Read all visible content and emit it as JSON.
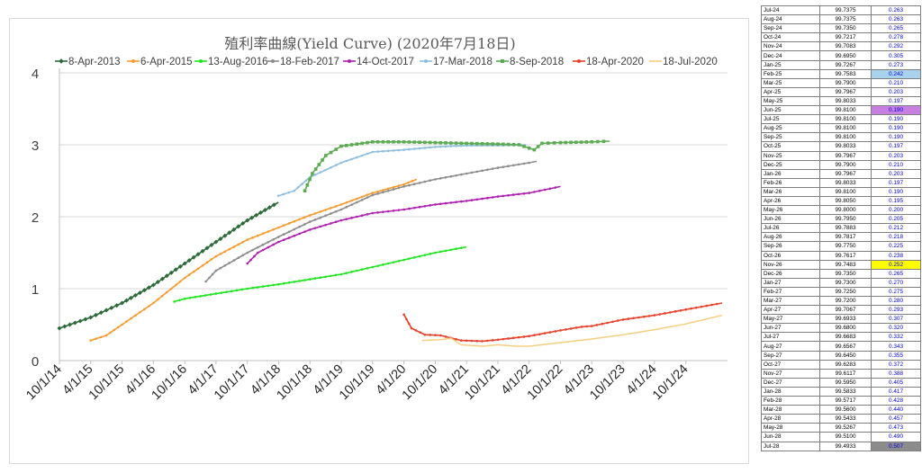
{
  "chart_data": {
    "type": "line",
    "title": "殖利率曲線(Yield Curve) (2020年7月18日)",
    "xlabel": "",
    "ylabel": "",
    "ylim": [
      0,
      4
    ],
    "yticks": [
      "0",
      "1",
      "2",
      "3",
      "4"
    ],
    "xticks": [
      "10/1/14",
      "4/1/15",
      "10/1/15",
      "4/1/16",
      "10/1/16",
      "4/1/17",
      "10/1/17",
      "4/1/18",
      "10/1/18",
      "4/1/19",
      "10/1/19",
      "4/1/20",
      "10/1/20",
      "4/1/21",
      "10/1/21",
      "4/1/22",
      "10/1/22",
      "4/1/23",
      "10/1/23",
      "4/1/24",
      "10/1/24"
    ],
    "grid": "horizontal",
    "legend": "top",
    "series": [
      {
        "name": "8-Apr-2013",
        "color": "#2e6b3b",
        "marker": "diamond",
        "points": [
          [
            "2014-10-01",
            0.45
          ],
          [
            "2015-04-01",
            0.6
          ],
          [
            "2015-10-01",
            0.8
          ],
          [
            "2016-04-01",
            1.05
          ],
          [
            "2016-10-01",
            1.35
          ],
          [
            "2017-04-01",
            1.65
          ],
          [
            "2017-10-01",
            1.95
          ],
          [
            "2018-03-31",
            2.2
          ]
        ]
      },
      {
        "name": "6-Apr-2015",
        "color": "#f79b2f",
        "marker": "dot",
        "points": [
          [
            "2015-04-01",
            0.28
          ],
          [
            "2015-07-01",
            0.35
          ],
          [
            "2015-10-01",
            0.5
          ],
          [
            "2016-04-01",
            0.8
          ],
          [
            "2016-10-01",
            1.15
          ],
          [
            "2017-04-01",
            1.45
          ],
          [
            "2017-10-01",
            1.68
          ],
          [
            "2018-04-01",
            1.85
          ],
          [
            "2018-10-01",
            2.02
          ],
          [
            "2019-04-01",
            2.17
          ],
          [
            "2019-10-01",
            2.33
          ],
          [
            "2020-04-01",
            2.45
          ],
          [
            "2020-06-15",
            2.52
          ]
        ]
      },
      {
        "name": "13-Aug-2016",
        "color": "#1ee61e",
        "marker": "dot",
        "points": [
          [
            "2016-08-01",
            0.82
          ],
          [
            "2016-10-01",
            0.86
          ],
          [
            "2017-04-01",
            0.93
          ],
          [
            "2017-10-01",
            1.0
          ],
          [
            "2018-04-01",
            1.06
          ],
          [
            "2018-10-01",
            1.13
          ],
          [
            "2019-04-01",
            1.2
          ],
          [
            "2019-10-01",
            1.3
          ],
          [
            "2020-04-01",
            1.4
          ],
          [
            "2020-10-01",
            1.5
          ],
          [
            "2021-04-01",
            1.58
          ]
        ]
      },
      {
        "name": "18-Feb-2017",
        "color": "#8c8c8c",
        "marker": "dot",
        "points": [
          [
            "2017-02-01",
            1.1
          ],
          [
            "2017-04-01",
            1.25
          ],
          [
            "2017-10-01",
            1.5
          ],
          [
            "2018-04-01",
            1.72
          ],
          [
            "2018-10-01",
            1.93
          ],
          [
            "2019-04-01",
            2.1
          ],
          [
            "2019-10-01",
            2.3
          ],
          [
            "2020-04-01",
            2.42
          ],
          [
            "2020-10-01",
            2.52
          ],
          [
            "2021-04-01",
            2.6
          ],
          [
            "2021-10-01",
            2.68
          ],
          [
            "2022-04-01",
            2.75
          ],
          [
            "2022-05-15",
            2.77
          ]
        ]
      },
      {
        "name": "14-Oct-2017",
        "color": "#b01eb0",
        "marker": "dot",
        "points": [
          [
            "2017-10-01",
            1.35
          ],
          [
            "2017-12-01",
            1.5
          ],
          [
            "2018-04-01",
            1.65
          ],
          [
            "2018-10-01",
            1.82
          ],
          [
            "2019-04-01",
            1.95
          ],
          [
            "2019-10-01",
            2.05
          ],
          [
            "2020-04-01",
            2.1
          ],
          [
            "2020-10-01",
            2.17
          ],
          [
            "2021-04-01",
            2.22
          ],
          [
            "2021-10-01",
            2.28
          ],
          [
            "2022-04-01",
            2.33
          ],
          [
            "2022-10-01",
            2.42
          ]
        ]
      },
      {
        "name": "17-Mar-2018",
        "color": "#8fbfe0",
        "marker": "dot",
        "points": [
          [
            "2018-03-31",
            2.29
          ],
          [
            "2018-07-01",
            2.36
          ],
          [
            "2018-10-01",
            2.55
          ],
          [
            "2019-04-01",
            2.75
          ],
          [
            "2019-10-01",
            2.9
          ],
          [
            "2020-04-01",
            2.93
          ],
          [
            "2020-10-01",
            2.97
          ],
          [
            "2021-04-01",
            2.99
          ],
          [
            "2021-10-01",
            2.99
          ],
          [
            "2022-03-15",
            3.0
          ]
        ]
      },
      {
        "name": "8-Sep-2018",
        "color": "#5cab52",
        "marker": "square",
        "points": [
          [
            "2018-09-01",
            2.36
          ],
          [
            "2018-10-15",
            2.6
          ],
          [
            "2019-01-01",
            2.85
          ],
          [
            "2019-04-01",
            2.98
          ],
          [
            "2019-10-01",
            3.04
          ],
          [
            "2020-04-01",
            3.04
          ],
          [
            "2020-10-01",
            3.03
          ],
          [
            "2021-04-01",
            3.02
          ],
          [
            "2021-10-01",
            3.01
          ],
          [
            "2022-02-01",
            3.0
          ],
          [
            "2022-05-01",
            2.93
          ],
          [
            "2022-06-15",
            3.02
          ],
          [
            "2022-10-01",
            3.03
          ],
          [
            "2023-04-01",
            3.04
          ],
          [
            "2023-07-15",
            3.05
          ]
        ]
      },
      {
        "name": "18-Apr-2020",
        "color": "#e8402a",
        "marker": "dot",
        "points": [
          [
            "2020-04-01",
            0.64
          ],
          [
            "2020-05-15",
            0.45
          ],
          [
            "2020-08-01",
            0.36
          ],
          [
            "2020-11-01",
            0.35
          ],
          [
            "2021-03-01",
            0.28
          ],
          [
            "2021-07-01",
            0.27
          ],
          [
            "2021-10-01",
            0.29
          ],
          [
            "2022-04-01",
            0.34
          ],
          [
            "2022-10-01",
            0.42
          ],
          [
            "2023-02-01",
            0.47
          ],
          [
            "2023-04-01",
            0.48
          ],
          [
            "2023-10-01",
            0.57
          ],
          [
            "2024-04-01",
            0.63
          ],
          [
            "2024-10-01",
            0.71
          ],
          [
            "2025-04-30",
            0.8
          ]
        ]
      },
      {
        "name": "18-Jul-2020",
        "color": "#f5cf7f",
        "marker": "none",
        "points": [
          [
            "2020-07-15",
            0.28
          ],
          [
            "2020-11-01",
            0.29
          ],
          [
            "2021-01-01",
            0.31
          ],
          [
            "2021-03-01",
            0.22
          ],
          [
            "2021-07-01",
            0.2
          ],
          [
            "2021-10-01",
            0.22
          ],
          [
            "2022-01-15",
            0.2
          ],
          [
            "2022-04-01",
            0.2
          ],
          [
            "2022-10-01",
            0.25
          ],
          [
            "2023-04-01",
            0.3
          ],
          [
            "2023-10-01",
            0.36
          ],
          [
            "2024-04-01",
            0.43
          ],
          [
            "2024-10-01",
            0.51
          ],
          [
            "2025-04-30",
            0.63
          ]
        ]
      }
    ]
  },
  "table": {
    "rows": [
      [
        "Jul-24",
        "99.7375",
        "0.263",
        ""
      ],
      [
        "Aug-24",
        "99.7375",
        "0.263",
        ""
      ],
      [
        "Sep-24",
        "99.7350",
        "0.265",
        ""
      ],
      [
        "Oct-24",
        "99.7217",
        "0.278",
        ""
      ],
      [
        "Nov-24",
        "99.7083",
        "0.292",
        ""
      ],
      [
        "Dec-24",
        "99.6950",
        "0.305",
        ""
      ],
      [
        "Jan-25",
        "99.7267",
        "0.273",
        ""
      ],
      [
        "Feb-25",
        "99.7583",
        "0.242",
        "#a9d3ec"
      ],
      [
        "Mar-25",
        "99.7900",
        "0.210",
        ""
      ],
      [
        "Apr-25",
        "99.7967",
        "0.203",
        ""
      ],
      [
        "May-25",
        "99.8033",
        "0.197",
        ""
      ],
      [
        "Jun-25",
        "99.8100",
        "0.190",
        "#c77fe0"
      ],
      [
        "Jul-25",
        "99.8100",
        "0.190",
        ""
      ],
      [
        "Aug-25",
        "99.8100",
        "0.190",
        ""
      ],
      [
        "Sep-25",
        "99.8100",
        "0.190",
        ""
      ],
      [
        "Oct-25",
        "99.8033",
        "0.197",
        ""
      ],
      [
        "Nov-25",
        "99.7967",
        "0.203",
        ""
      ],
      [
        "Dec-25",
        "99.7900",
        "0.210",
        ""
      ],
      [
        "Jan-26",
        "99.7967",
        "0.203",
        ""
      ],
      [
        "Feb-26",
        "99.8033",
        "0.197",
        ""
      ],
      [
        "Mar-26",
        "99.8100",
        "0.190",
        ""
      ],
      [
        "Apr-26",
        "99.8050",
        "0.195",
        ""
      ],
      [
        "May-26",
        "99.8000",
        "0.200",
        ""
      ],
      [
        "Jun-26",
        "99.7950",
        "0.205",
        ""
      ],
      [
        "Jul-26",
        "99.7883",
        "0.212",
        ""
      ],
      [
        "Aug-26",
        "99.7817",
        "0.218",
        ""
      ],
      [
        "Sep-26",
        "99.7750",
        "0.225",
        ""
      ],
      [
        "Oct-26",
        "99.7617",
        "0.238",
        ""
      ],
      [
        "Nov-26",
        "99.7483",
        "0.252",
        "#ffff00"
      ],
      [
        "Dec-26",
        "99.7350",
        "0.265",
        ""
      ],
      [
        "Jan-27",
        "99.7300",
        "0.270",
        ""
      ],
      [
        "Feb-27",
        "99.7250",
        "0.275",
        ""
      ],
      [
        "Mar-27",
        "99.7200",
        "0.280",
        ""
      ],
      [
        "Apr-27",
        "99.7067",
        "0.293",
        ""
      ],
      [
        "May-27",
        "99.6933",
        "0.307",
        ""
      ],
      [
        "Jun-27",
        "99.6800",
        "0.320",
        ""
      ],
      [
        "Jul-27",
        "99.6683",
        "0.332",
        ""
      ],
      [
        "Aug-27",
        "99.6567",
        "0.343",
        ""
      ],
      [
        "Sep-27",
        "99.6450",
        "0.355",
        ""
      ],
      [
        "Oct-27",
        "99.6283",
        "0.372",
        ""
      ],
      [
        "Nov-27",
        "99.6117",
        "0.388",
        ""
      ],
      [
        "Dec-27",
        "99.5950",
        "0.405",
        ""
      ],
      [
        "Jan-28",
        "99.5833",
        "0.417",
        ""
      ],
      [
        "Feb-28",
        "99.5717",
        "0.428",
        ""
      ],
      [
        "Mar-28",
        "99.5600",
        "0.440",
        ""
      ],
      [
        "Apr-28",
        "99.5433",
        "0.457",
        ""
      ],
      [
        "May-28",
        "99.5267",
        "0.473",
        ""
      ],
      [
        "Jun-28",
        "99.5100",
        "0.490",
        ""
      ],
      [
        "Jul-28",
        "99.4933",
        "0.507",
        "#8c8c8c"
      ]
    ]
  }
}
